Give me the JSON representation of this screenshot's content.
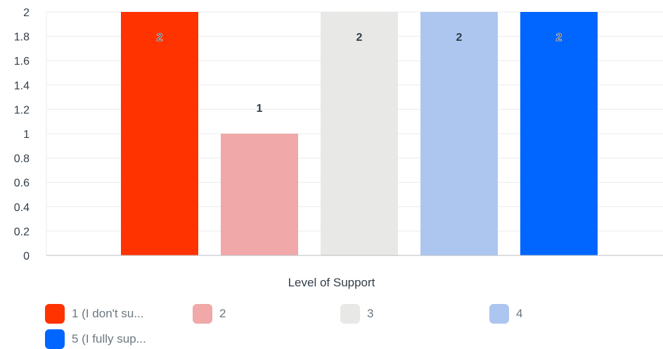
{
  "chart_data": {
    "type": "bar",
    "categories": [
      "1 (I don't su...",
      "2",
      "3",
      "4",
      "5 (I fully sup..."
    ],
    "values": [
      2,
      1,
      2,
      2,
      2
    ],
    "colors": [
      "#ff3300",
      "#f0a8a8",
      "#e8e8e6",
      "#adc6f0",
      "#0066ff"
    ],
    "xlabel": "Level of Support",
    "ylim": [
      0,
      2
    ],
    "yticks": [
      "0",
      "0.2",
      "0.4",
      "0.6",
      "0.8",
      "1",
      "1.2",
      "1.4",
      "1.6",
      "1.8",
      "2"
    ],
    "grid": true,
    "legend_position": "bottom",
    "legend": [
      "1 (I don't su...",
      "2",
      "3",
      "4",
      "5 (I fully sup..."
    ]
  }
}
